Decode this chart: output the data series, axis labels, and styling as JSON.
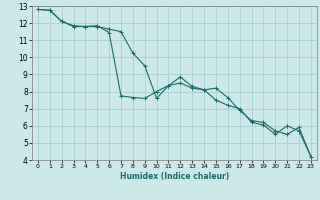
{
  "xlabel": "Humidex (Indice chaleur)",
  "bg_color": "#cde8e8",
  "grid_color": "#aacece",
  "line_color": "#1a6b6b",
  "xlim": [
    -0.5,
    23.5
  ],
  "ylim": [
    4,
    13
  ],
  "xticks": [
    0,
    1,
    2,
    3,
    4,
    5,
    6,
    7,
    8,
    9,
    10,
    11,
    12,
    13,
    14,
    15,
    16,
    17,
    18,
    19,
    20,
    21,
    22,
    23
  ],
  "yticks": [
    4,
    5,
    6,
    7,
    8,
    9,
    10,
    11,
    12,
    13
  ],
  "line1_x": [
    0,
    1,
    2,
    3,
    4,
    5,
    6,
    7,
    8,
    9,
    10,
    11,
    12,
    13,
    14,
    15,
    16,
    17,
    18,
    19,
    20,
    21,
    22,
    23
  ],
  "line1_y": [
    12.8,
    12.75,
    12.1,
    11.85,
    11.8,
    11.8,
    11.65,
    11.5,
    10.25,
    9.5,
    7.6,
    8.35,
    8.5,
    8.2,
    8.1,
    7.5,
    7.2,
    7.0,
    6.2,
    6.05,
    5.5,
    6.0,
    5.7,
    4.2
  ],
  "line2_x": [
    0,
    1,
    2,
    3,
    4,
    5,
    6,
    7,
    8,
    9,
    10,
    11,
    12,
    13,
    14,
    15,
    16,
    17,
    18,
    19,
    20,
    21,
    22,
    23
  ],
  "line2_y": [
    12.8,
    12.75,
    12.1,
    11.8,
    11.8,
    11.85,
    11.45,
    7.75,
    7.65,
    7.6,
    8.0,
    8.35,
    8.85,
    8.3,
    8.1,
    8.2,
    7.65,
    6.9,
    6.3,
    6.2,
    5.7,
    5.5,
    5.9,
    4.2
  ]
}
